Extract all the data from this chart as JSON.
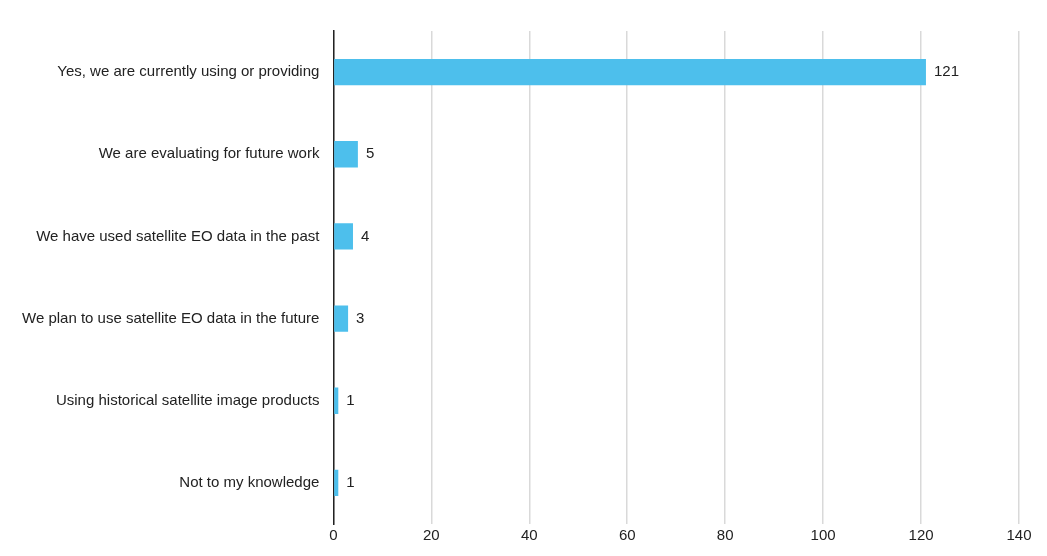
{
  "chart_data": {
    "type": "bar",
    "orientation": "horizontal",
    "categories": [
      "Yes, we are currently using or providing",
      "We are evaluating for future work",
      "We have used satellite EO data in the past",
      "We plan to use satellite EO data in the future",
      "Using historical satellite image products",
      "Not to my knowledge"
    ],
    "values": [
      121,
      5,
      4,
      3,
      1,
      1
    ],
    "color": "#4dbfec",
    "xlim": [
      0,
      140
    ],
    "xticks": [
      0,
      20,
      40,
      60,
      80,
      100,
      120,
      140
    ],
    "grid": "x",
    "data_labels": true,
    "legend": false
  }
}
